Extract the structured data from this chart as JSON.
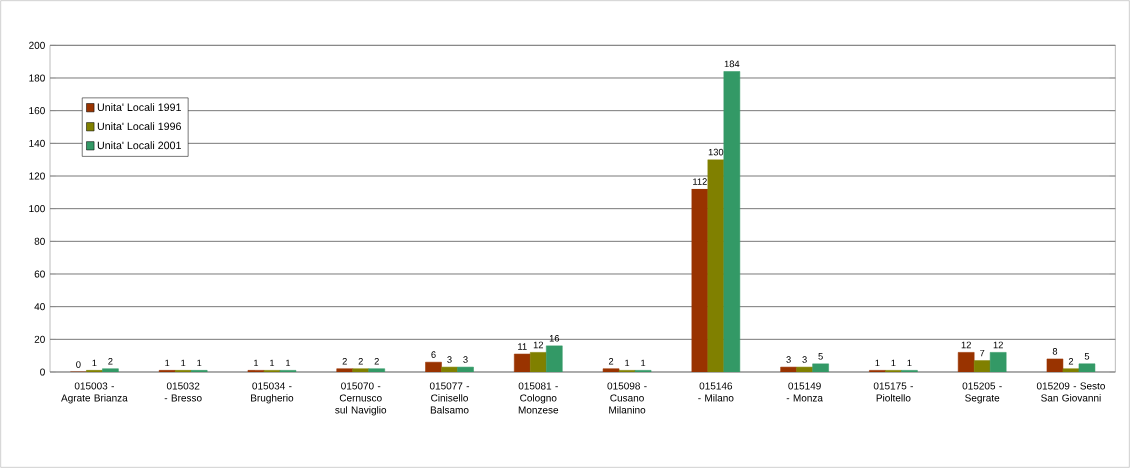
{
  "chart_data": {
    "type": "bar",
    "categories": [
      "015003 - Agrate Brianza",
      "015032 - Bresso",
      "015034 - Brugherio",
      "015070 - Cernusco sul Naviglio",
      "015077 - Cinisello Balsamo",
      "015081 - Cologno Monzese",
      "015098 - Cusano Milanino",
      "015146 - Milano",
      "015149 - Monza",
      "015175 - Pioltello",
      "015205 - Segrate",
      "015209 - Sesto San Giovanni"
    ],
    "series": [
      {
        "name": "Unita' Locali 1991",
        "color": "#993300",
        "values": [
          0,
          1,
          1,
          2,
          6,
          11,
          2,
          112,
          3,
          1,
          12,
          8
        ]
      },
      {
        "name": "Unita' Locali 1996",
        "color": "#808000",
        "values": [
          1,
          1,
          1,
          2,
          3,
          12,
          1,
          130,
          3,
          1,
          7,
          2
        ]
      },
      {
        "name": "Unita' Locali 2001",
        "color": "#339966",
        "values": [
          2,
          1,
          1,
          2,
          3,
          16,
          1,
          184,
          5,
          1,
          12,
          5
        ]
      }
    ],
    "ylim": [
      0,
      200
    ],
    "yticks": [
      0,
      20,
      40,
      60,
      80,
      100,
      120,
      140,
      160,
      180,
      200
    ],
    "grid": "y",
    "legend": "top left",
    "data_labels": true
  }
}
